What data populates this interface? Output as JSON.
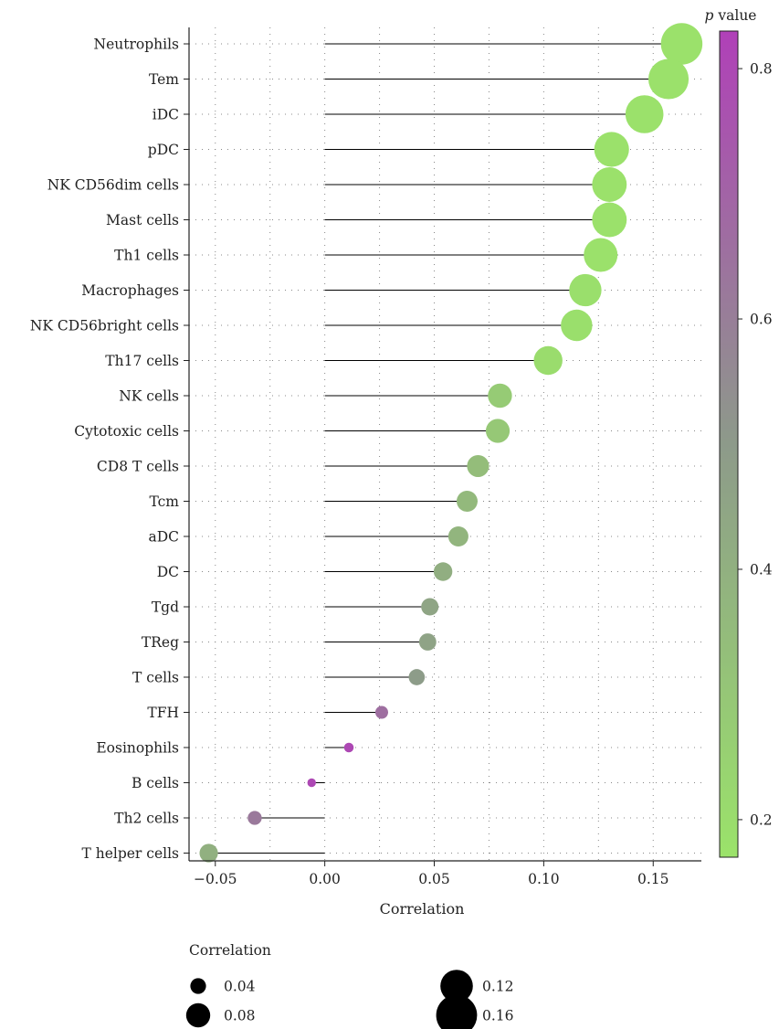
{
  "chart_data": {
    "type": "lollipop",
    "title": "",
    "xlabel": "Correlation",
    "ylabel": "",
    "xlim": [
      -0.062,
      0.172
    ],
    "xticks": [
      -0.05,
      0.0,
      0.05,
      0.1,
      0.15
    ],
    "xtick_labels": [
      "−0.05",
      "0.00",
      "0.05",
      "0.10",
      "0.15"
    ],
    "grid": "dotted",
    "categories": [
      "Neutrophils",
      "Tem",
      "iDC",
      "pDC",
      "NK CD56dim cells",
      "Mast cells",
      "Th1 cells",
      "Macrophages",
      "NK CD56bright cells",
      "Th17 cells",
      "NK cells",
      "Cytotoxic cells",
      "CD8 T cells",
      "Tcm",
      "aDC",
      "DC",
      "Tgd",
      "TReg",
      "T cells",
      "TFH",
      "Eosinophils",
      "B cells",
      "Th2 cells",
      "T helper cells"
    ],
    "values": [
      0.163,
      0.157,
      0.146,
      0.131,
      0.13,
      0.13,
      0.126,
      0.119,
      0.115,
      0.102,
      0.08,
      0.079,
      0.07,
      0.065,
      0.061,
      0.054,
      0.048,
      0.047,
      0.042,
      0.026,
      0.011,
      -0.006,
      -0.032,
      -0.053
    ],
    "p_values": [
      0.18,
      0.18,
      0.18,
      0.18,
      0.18,
      0.18,
      0.18,
      0.19,
      0.19,
      0.2,
      0.28,
      0.29,
      0.34,
      0.36,
      0.38,
      0.41,
      0.45,
      0.46,
      0.49,
      0.66,
      0.8,
      0.8,
      0.62,
      0.4
    ],
    "color_scale": {
      "title_italic": "p",
      "title_rest": " value",
      "range": [
        0.17,
        0.83
      ],
      "ticks": [
        0.2,
        0.4,
        0.6,
        0.8
      ],
      "tick_labels": [
        "0.2",
        "0.4",
        "0.6",
        "0.8"
      ],
      "low_color": "#9be36a",
      "mid_color": "#8d9a8a",
      "high_color": "#b040b8"
    },
    "size_legend": {
      "title": "Correlation",
      "entries": [
        {
          "label": "0.04",
          "value": 0.04
        },
        {
          "label": "0.12",
          "value": 0.12
        },
        {
          "label": "0.08",
          "value": 0.08
        },
        {
          "label": "0.16",
          "value": 0.16
        }
      ]
    },
    "stem_color": "#000000"
  }
}
